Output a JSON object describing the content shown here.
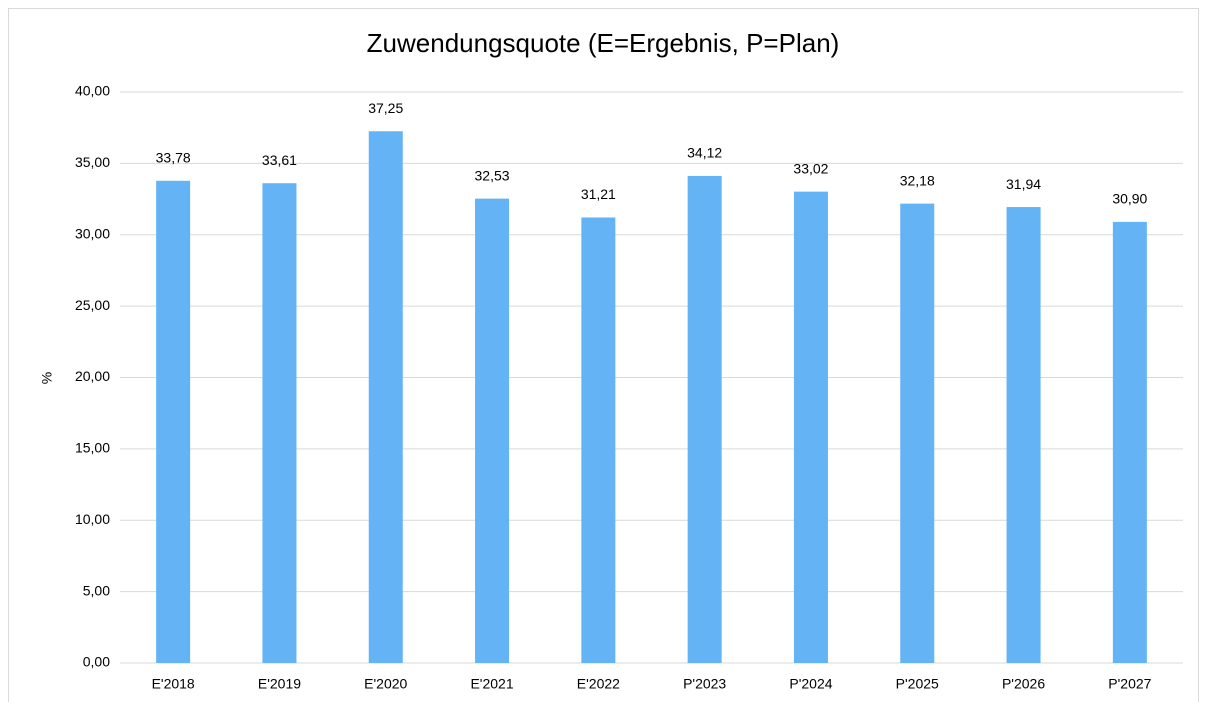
{
  "chart_data": {
    "type": "bar",
    "title": "Zuwendungsquote (E=Ergebnis, P=Plan)",
    "y_label": "%",
    "categories": [
      "E'2018",
      "E'2019",
      "E'2020",
      "E'2021",
      "E'2022",
      "P'2023",
      "P'2024",
      "P'2025",
      "P'2026",
      "P'2027"
    ],
    "values": [
      33.78,
      33.61,
      37.25,
      32.53,
      31.21,
      34.12,
      33.02,
      32.18,
      31.94,
      30.9
    ],
    "value_labels": [
      "33,78",
      "33,61",
      "37,25",
      "32,53",
      "31,21",
      "34,12",
      "33,02",
      "32,18",
      "31,94",
      "30,90"
    ],
    "color": "#63b3f5",
    "ylim": [
      0,
      40
    ],
    "yticks": [
      {
        "value": 0,
        "label": "0,00"
      },
      {
        "value": 5,
        "label": "5,00"
      },
      {
        "value": 10,
        "label": "10,00"
      },
      {
        "value": 15,
        "label": "15,00"
      },
      {
        "value": 20,
        "label": "20,00"
      },
      {
        "value": 25,
        "label": "25,00"
      },
      {
        "value": 30,
        "label": "30,00"
      },
      {
        "value": 35,
        "label": "35,00"
      },
      {
        "value": 40,
        "label": "40,00"
      }
    ],
    "grid": true
  }
}
